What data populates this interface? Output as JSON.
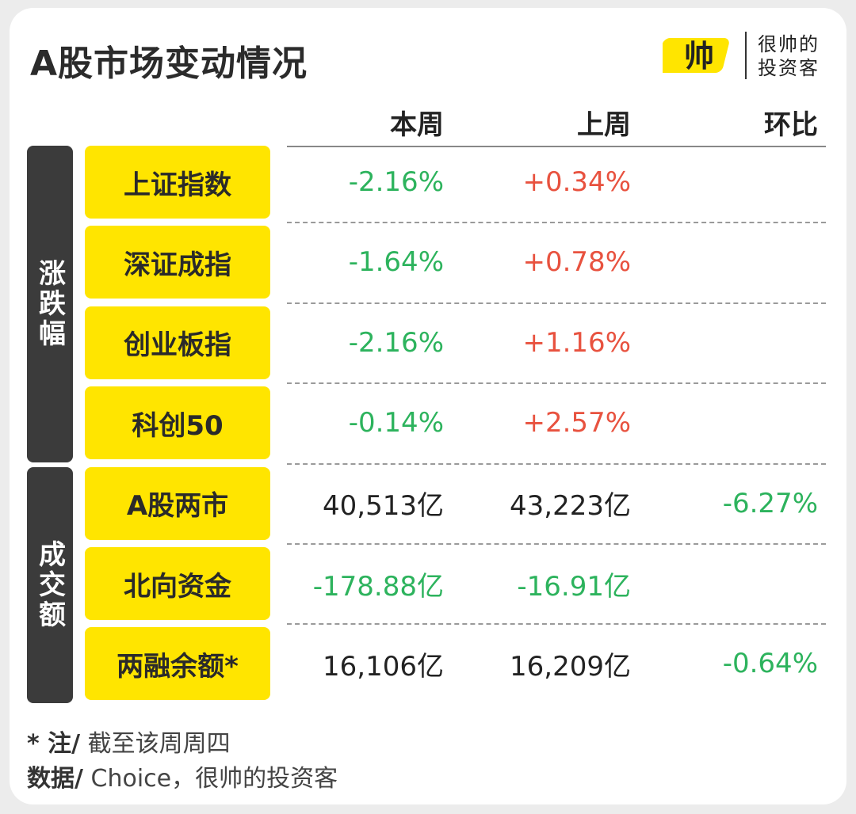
{
  "title": "A股市场变动情况",
  "logo": {
    "mark_text": "帅",
    "line1": "很帅的",
    "line2": "投资客",
    "icon": "shuai-logo-icon"
  },
  "columns": {
    "this_week": "本周",
    "last_week": "上周",
    "change": "环比"
  },
  "colors": {
    "yellow": "#ffe500",
    "dark": "#3b3b3b",
    "negative": "#2db35d",
    "positive": "#e8523f",
    "neutral": "#222222"
  },
  "groups": [
    {
      "label": "涨跌幅",
      "rows": [
        {
          "name": "上证指数",
          "this_week": "-2.16%",
          "last_week": "+0.34%",
          "change": ""
        },
        {
          "name": "深证成指",
          "this_week": "-1.64%",
          "last_week": "+0.78%",
          "change": ""
        },
        {
          "name": "创业板指",
          "this_week": "-2.16%",
          "last_week": "+1.16%",
          "change": ""
        },
        {
          "name": "科创50",
          "this_week": "-0.14%",
          "last_week": "+2.57%",
          "change": ""
        }
      ]
    },
    {
      "label": "成交额",
      "rows": [
        {
          "name": "A股两市",
          "this_week": "40,513亿",
          "last_week": "43,223亿",
          "change": "-6.27%"
        },
        {
          "name": "北向资金",
          "this_week": "-178.88亿",
          "last_week": "-16.91亿",
          "change": ""
        },
        {
          "name": "两融余额*",
          "this_week": "16,106亿",
          "last_week": "16,209亿",
          "change": "-0.64%"
        }
      ]
    }
  ],
  "notes": {
    "note_key": "* 注/",
    "note_text": " 截至该周周四",
    "source_key": "数据/",
    "source_text": " Choice，很帅的投资客"
  }
}
